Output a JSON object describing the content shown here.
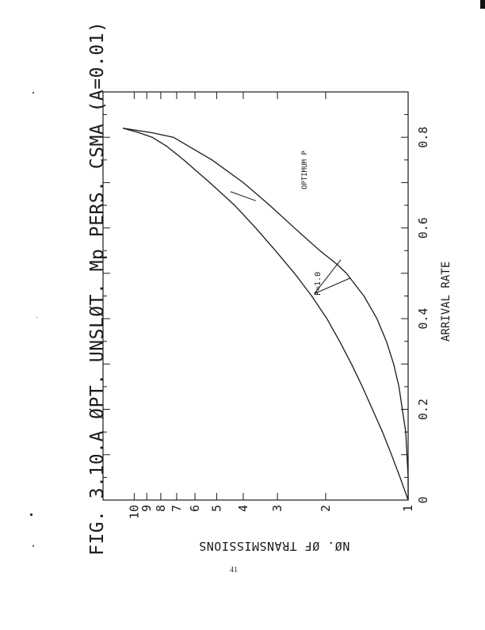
{
  "page": {
    "page_number": "41"
  },
  "colors": {
    "ink": "#1a1a1a",
    "background": "#ffffff"
  },
  "chart_data": {
    "type": "line",
    "title": "FIG. 3.10.A  ØPT. UNSLØT. Mp PERS. CSMA (A=0.01)",
    "xlabel": "ARRIVAL RATE",
    "ylabel": "NØ. ØF TRANSMISSIONS",
    "yscale": "log",
    "xlim": [
      0,
      0.9
    ],
    "ylim": [
      1,
      13
    ],
    "x_ticks": [
      {
        "value": 0,
        "label": "0"
      },
      {
        "value": 0.2,
        "label": "0.2"
      },
      {
        "value": 0.4,
        "label": "0.4"
      },
      {
        "value": 0.6,
        "label": "0.6"
      },
      {
        "value": 0.8,
        "label": "0.8"
      }
    ],
    "y_ticks": [
      {
        "value": 1,
        "label": "1"
      },
      {
        "value": 2,
        "label": "2"
      },
      {
        "value": 3,
        "label": "3"
      },
      {
        "value": 4,
        "label": "4"
      },
      {
        "value": 5,
        "label": "5"
      },
      {
        "value": 6,
        "label": "6"
      },
      {
        "value": 7,
        "label": "7"
      },
      {
        "value": 8,
        "label": "8"
      },
      {
        "value": 9,
        "label": "9"
      },
      {
        "value": 10,
        "label": "10"
      }
    ],
    "grid": false,
    "legend": "none",
    "series": [
      {
        "name": "P=1.0",
        "x": [
          0,
          0.05,
          0.1,
          0.15,
          0.2,
          0.25,
          0.3,
          0.35,
          0.4,
          0.45,
          0.5,
          0.55,
          0.6,
          0.65,
          0.7,
          0.75,
          0.78,
          0.8,
          0.81,
          0.82
        ],
        "y": [
          1.0,
          1.07,
          1.15,
          1.24,
          1.35,
          1.47,
          1.61,
          1.78,
          1.98,
          2.25,
          2.6,
          3.05,
          3.6,
          4.3,
          5.3,
          6.6,
          7.6,
          8.6,
          9.6,
          11.0
        ]
      },
      {
        "name": "OPTIMUM P",
        "x": [
          0,
          0.05,
          0.1,
          0.15,
          0.2,
          0.25,
          0.3,
          0.35,
          0.4,
          0.45,
          0.5,
          0.52,
          0.55,
          0.6,
          0.65,
          0.7,
          0.75,
          0.8,
          0.81,
          0.82
        ],
        "y": [
          1.0,
          1.0,
          1.01,
          1.02,
          1.05,
          1.08,
          1.13,
          1.2,
          1.3,
          1.45,
          1.68,
          1.82,
          2.1,
          2.6,
          3.2,
          4.0,
          5.2,
          7.2,
          8.6,
          11.0
        ]
      }
    ],
    "annotations": [
      {
        "text": "P=1.0",
        "target_series": "P=1.0"
      },
      {
        "text": "OPTIMUM P",
        "target_series": "OPTIMUM P"
      }
    ]
  }
}
